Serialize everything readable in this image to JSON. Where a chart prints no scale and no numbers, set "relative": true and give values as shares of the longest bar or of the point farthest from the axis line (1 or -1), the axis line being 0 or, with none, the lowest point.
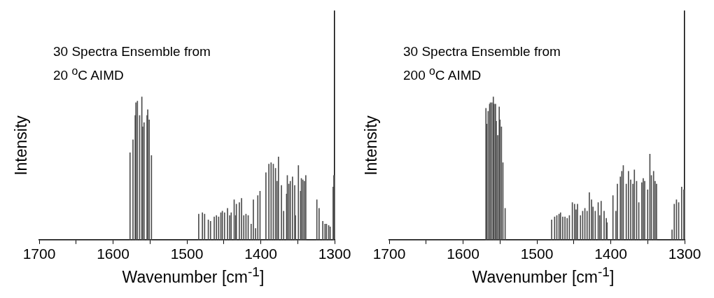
{
  "chart_data": [
    {
      "type": "bar",
      "relative": true,
      "color": "#4d4d4d",
      "xlabel": "Wavenumber [cm$^{-1}$]",
      "ylabel": "Intensity",
      "annotations": [
        "30 Spectra Ensemble from",
        "20 $^{o}$C AIMD"
      ],
      "xlim": [
        1700,
        1300
      ],
      "xticks": [
        1700,
        {
          "value": 1650,
          "label": null
        },
        1600,
        {
          "value": 1550,
          "label": null
        },
        1500,
        {
          "value": 1450,
          "label": null
        },
        1400,
        {
          "value": 1350,
          "label": null
        },
        1300
      ],
      "x": [
        1577,
        1573,
        1570,
        1569,
        1567,
        1564,
        1561,
        1560,
        1558,
        1554,
        1553,
        1551,
        1548,
        1484,
        1479,
        1476,
        1471,
        1468,
        1463,
        1460,
        1457,
        1454,
        1452,
        1449,
        1445,
        1442,
        1440,
        1436,
        1434,
        1433,
        1429,
        1426,
        1423,
        1420,
        1417,
        1413,
        1410,
        1407,
        1404,
        1401,
        1393,
        1389,
        1386,
        1383,
        1380,
        1378,
        1376,
        1372,
        1369,
        1365,
        1364,
        1362,
        1360,
        1357,
        1354,
        1353,
        1349,
        1346,
        1345,
        1343,
        1341,
        1339,
        1324,
        1321,
        1316,
        1313,
        1311,
        1308,
        1306,
        1302,
        1301
      ],
      "values": [
        0.61,
        0.7,
        0.87,
        0.96,
        0.97,
        0.87,
        1.0,
        0.79,
        0.82,
        0.87,
        0.91,
        0.84,
        0.59,
        0.18,
        0.19,
        0.18,
        0.14,
        0.13,
        0.16,
        0.17,
        0.16,
        0.19,
        0.2,
        0.19,
        0.22,
        0.17,
        0.19,
        0.28,
        0.17,
        0.25,
        0.26,
        0.29,
        0.17,
        0.18,
        0.17,
        0.11,
        0.28,
        0.08,
        0.31,
        0.34,
        0.47,
        0.53,
        0.54,
        0.53,
        0.5,
        0.41,
        0.58,
        0.38,
        0.2,
        0.32,
        0.45,
        0.39,
        0.41,
        0.44,
        0.38,
        0.17,
        0.52,
        0.34,
        0.43,
        0.42,
        0.41,
        0.45,
        0.28,
        0.22,
        0.13,
        0.11,
        0.11,
        0.1,
        0.09,
        0.37,
        0.45
      ]
    },
    {
      "type": "bar",
      "relative": true,
      "color": "#4d4d4d",
      "xlabel": "Wavenumber [cm$^{-1}$]",
      "ylabel": "Intensity",
      "annotations": [
        "30 Spectra Ensemble from",
        "200 $^{o}$C AIMD"
      ],
      "xlim": [
        1700,
        1300
      ],
      "xticks": [
        1700,
        {
          "value": 1650,
          "label": null
        },
        1600,
        {
          "value": 1550,
          "label": null
        },
        1500,
        {
          "value": 1450,
          "label": null
        },
        1400,
        {
          "value": 1350,
          "label": null
        },
        1300
      ],
      "x": [
        1569,
        1568,
        1566,
        1564,
        1563,
        1561,
        1559,
        1558,
        1556,
        1555,
        1553,
        1551,
        1550,
        1548,
        1546,
        1543,
        1480,
        1476,
        1473,
        1470,
        1468,
        1465,
        1462,
        1459,
        1456,
        1452,
        1449,
        1447,
        1445,
        1441,
        1438,
        1435,
        1432,
        1429,
        1426,
        1424,
        1421,
        1417,
        1415,
        1413,
        1409,
        1406,
        1405,
        1397,
        1393,
        1391,
        1387,
        1385,
        1383,
        1379,
        1376,
        1373,
        1370,
        1368,
        1365,
        1362,
        1358,
        1356,
        1354,
        1350,
        1347,
        1345,
        1342,
        1340,
        1338,
        1317,
        1314,
        1311,
        1308,
        1304,
        1301
      ],
      "values": [
        0.92,
        0.81,
        0.9,
        0.95,
        0.96,
        0.96,
        1.0,
        0.95,
        0.95,
        0.83,
        0.73,
        0.93,
        0.84,
        0.79,
        0.54,
        0.22,
        0.14,
        0.16,
        0.17,
        0.18,
        0.19,
        0.16,
        0.16,
        0.15,
        0.17,
        0.26,
        0.25,
        0.21,
        0.25,
        0.17,
        0.2,
        0.22,
        0.2,
        0.33,
        0.28,
        0.23,
        0.2,
        0.26,
        0.17,
        0.27,
        0.2,
        0.15,
        0.12,
        0.31,
        0.2,
        0.39,
        0.44,
        0.48,
        0.52,
        0.39,
        0.48,
        0.42,
        0.39,
        0.49,
        0.41,
        0.26,
        0.4,
        0.43,
        0.41,
        0.35,
        0.6,
        0.45,
        0.48,
        0.41,
        0.39,
        0.07,
        0.25,
        0.28,
        0.26,
        0.37,
        0.35
      ]
    }
  ]
}
